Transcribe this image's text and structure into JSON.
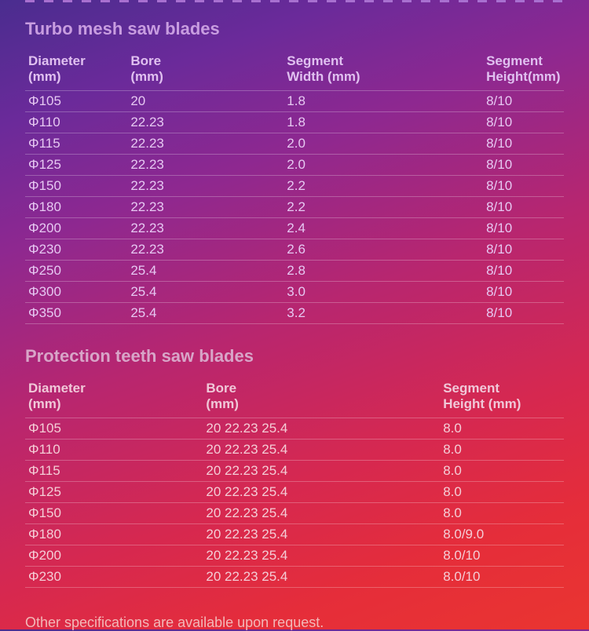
{
  "turbo": {
    "title": "Turbo mesh saw blades",
    "columns": [
      "Diameter (mm)",
      "Bore (mm)",
      "Segment Width  (mm)",
      "Segment Height(mm)"
    ],
    "col_widths": [
      "19%",
      "29%",
      "37%",
      "15%"
    ],
    "rows": [
      [
        "Φ105",
        "20",
        "1.8",
        "8/10"
      ],
      [
        "Φ110",
        "22.23",
        "1.8",
        "8/10"
      ],
      [
        "Φ115",
        "22.23",
        "2.0",
        "8/10"
      ],
      [
        "Φ125",
        "22.23",
        "2.0",
        "8/10"
      ],
      [
        "Φ150",
        "22.23",
        "2.2",
        "8/10"
      ],
      [
        "Φ180",
        "22.23",
        "2.2",
        "8/10"
      ],
      [
        "Φ200",
        "22.23",
        "2.4",
        "8/10"
      ],
      [
        "Φ230",
        "22.23",
        "2.6",
        "8/10"
      ],
      [
        "Φ250",
        "25.4",
        "2.8",
        "8/10"
      ],
      [
        "Φ300",
        "25.4",
        "3.0",
        "8/10"
      ],
      [
        "Φ350",
        "25.4",
        "3.2",
        "8/10"
      ]
    ]
  },
  "protection": {
    "title": "Protection teeth saw blades",
    "columns": [
      "Diameter (mm)",
      "Bore (mm)",
      "Segment Height (mm)"
    ],
    "col_widths": [
      "33%",
      "44%",
      "23%"
    ],
    "rows": [
      [
        "Φ105",
        "20 22.23 25.4",
        "8.0"
      ],
      [
        "Φ110",
        "20 22.23 25.4",
        "8.0"
      ],
      [
        "Φ115",
        "20 22.23 25.4",
        "8.0"
      ],
      [
        "Φ125",
        "20 22.23 25.4",
        "8.0"
      ],
      [
        "Φ150",
        "20 22.23 25.4",
        "8.0"
      ],
      [
        "Φ180",
        "20 22.23 25.4",
        "8.0/9.0"
      ],
      [
        "Φ200",
        "20 22.23 25.4",
        "8.0/10"
      ],
      [
        "Φ230",
        "20 22.23 25.4",
        "8.0/10"
      ]
    ]
  },
  "footnote": "Other specifications are available upon request."
}
